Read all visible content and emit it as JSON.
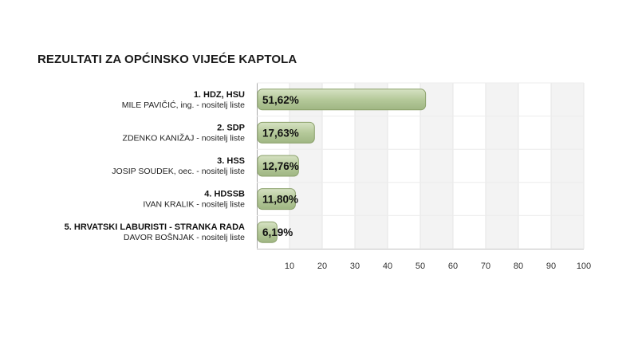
{
  "title": "REZULTATI ZA OPĆINSKO VIJEĆE KAPTOLA",
  "chart_data": {
    "type": "bar",
    "orientation": "horizontal",
    "categories": [
      "1. HDZ, HSU",
      "2. SDP",
      "3. HSS",
      "4. HDSSB",
      "5. HRVATSKI LABURISTI - STRANKA RADA"
    ],
    "sublabels": [
      "MILE PAVIČIĆ, ing. - nositelj liste",
      "ZDENKO KANIŽAJ - nositelj liste",
      "JOSIP SOUDEK, oec. - nositelj liste",
      "IVAN KRALIK - nositelj liste",
      "DAVOR BOŠNJAK - nositelj liste"
    ],
    "values": [
      51.62,
      17.63,
      12.76,
      11.8,
      6.19
    ],
    "value_labels": [
      "51,62%",
      "17,63%",
      "12,76%",
      "11,80%",
      "6,19%"
    ],
    "xlim": [
      0,
      100
    ],
    "xticks": [
      10,
      20,
      30,
      40,
      50,
      60,
      70,
      80,
      90,
      100
    ],
    "bar_color": "#b5c99a",
    "bar_border_color": "#8aa06a",
    "grid": true
  }
}
